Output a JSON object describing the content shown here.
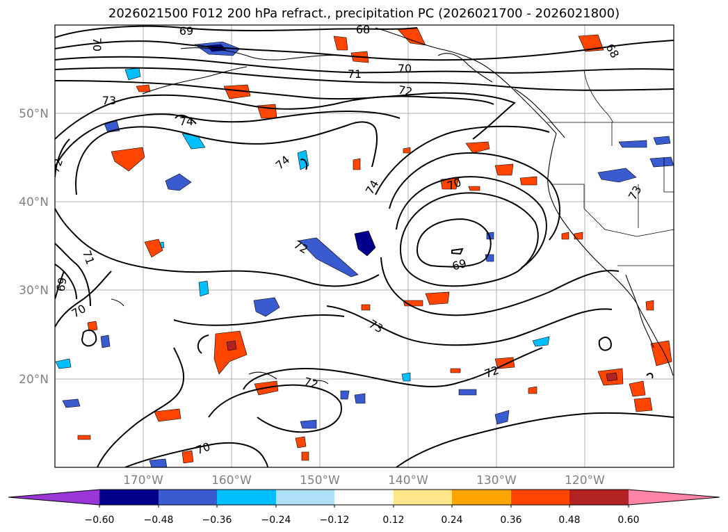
{
  "title": "2026021500 F012 200 hPa refract., precipitation PC (2026021700 - 2026021800)",
  "map": {
    "lon_labels": [
      "170°W",
      "160°W",
      "150°W",
      "140°W",
      "130°W",
      "120°W"
    ],
    "lat_labels": [
      "50°N",
      "40°N",
      "30°N",
      "20°N"
    ],
    "contour_labels": [
      "69",
      "68",
      "70",
      "71",
      "70",
      "72",
      "73",
      "74",
      "72",
      "74",
      "74",
      "70",
      "73",
      "72",
      "71",
      "69",
      "70",
      "69",
      "73",
      "72",
      "72",
      "70",
      "68"
    ]
  },
  "colorbar": {
    "ticks": [
      "−0.60",
      "−0.48",
      "−0.36",
      "−0.24",
      "−0.12",
      "0.12",
      "0.24",
      "0.36",
      "0.48",
      "0.60"
    ],
    "colors": [
      "#9a35d6",
      "#00008b",
      "#3a5bd0",
      "#00bfff",
      "#aee0f8",
      "#ffffff",
      "#ffe68a",
      "#ffa500",
      "#ff4500",
      "#b22222",
      "#ff85a8"
    ]
  }
}
